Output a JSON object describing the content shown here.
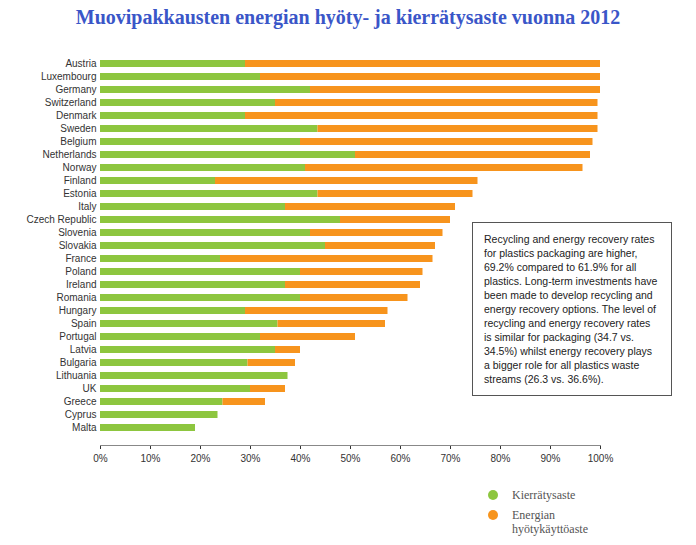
{
  "chart_data": {
    "type": "bar",
    "title": "Muovipakkausten energian hyöty- ja kierrätysaste vuonna 2012",
    "orientation": "horizontal",
    "stacked": true,
    "grid": false,
    "legend": "bottom-right",
    "categories": [
      "Austria",
      "Luxembourg",
      "Germany",
      "Switzerland",
      "Denmark",
      "Sweden",
      "Belgium",
      "Netherlands",
      "Norway",
      "Finland",
      "Estonia",
      "Italy",
      "Czech Republic",
      "Slovenia",
      "Slovakia",
      "France",
      "Poland",
      "Ireland",
      "Romania",
      "Hungary",
      "Spain",
      "Portugal",
      "Latvia",
      "Bulgaria",
      "Lithuania",
      "UK",
      "Greece",
      "Cyprus",
      "Malta"
    ],
    "series": [
      {
        "name": "Kierrätysaste",
        "color": "#8dc63f",
        "values": [
          29,
          32,
          42,
          35,
          29,
          43.5,
          40,
          51,
          41,
          23,
          43.5,
          37,
          48,
          42,
          45,
          24,
          40,
          37,
          40,
          29,
          35.5,
          32,
          35,
          29.5,
          37.5,
          30,
          24.5,
          23.5,
          19
        ]
      },
      {
        "name": "Energian hyötykäyttöaste",
        "color": "#f7941d",
        "values": [
          71,
          68,
          58,
          64.5,
          70.5,
          56,
          58.5,
          47,
          55.5,
          52.5,
          31,
          34,
          22,
          26.5,
          22,
          42.5,
          24.5,
          27,
          21.5,
          28.5,
          21.5,
          19,
          5,
          9.5,
          0,
          7,
          8.5,
          0,
          0
        ]
      }
    ],
    "xlim": [
      0,
      100
    ],
    "xticks": [
      {
        "value": 0,
        "label": "0%"
      },
      {
        "value": 10,
        "label": "10%"
      },
      {
        "value": 20,
        "label": "20%"
      },
      {
        "value": 30,
        "label": "30%"
      },
      {
        "value": 40,
        "label": "40%"
      },
      {
        "value": 50,
        "label": "50%"
      },
      {
        "value": 60,
        "label": "60%"
      },
      {
        "value": 70,
        "label": "70%"
      },
      {
        "value": 80,
        "label": "80%"
      },
      {
        "value": 90,
        "label": "90%"
      },
      {
        "value": 100,
        "label": "100%"
      }
    ],
    "annotation": "Recycling and energy recovery rates for plastics packaging are higher, 69.2% compared to 61.9% for all plastics. Long-term investments have been made to develop recycling and energy recovery options. The level of recycling and energy recovery rates is similar for packaging (34.7 vs. 34.5%) whilst energy recovery plays a bigger role for all plastics waste streams (26.3 vs. 36.6%)."
  }
}
